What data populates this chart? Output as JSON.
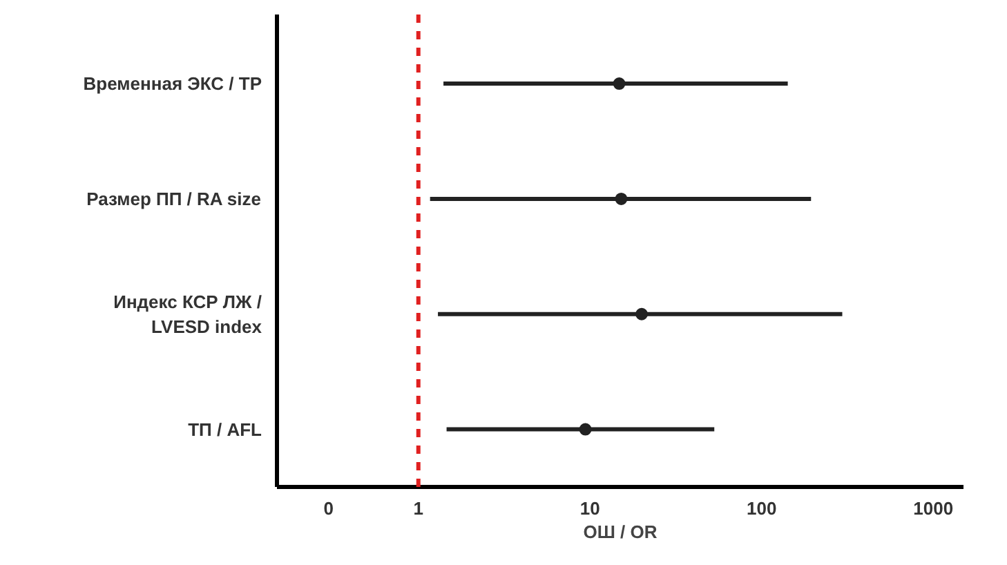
{
  "chart_data": {
    "type": "scatter",
    "orientation": "horizontal",
    "xlabel": "ОШ / OR",
    "categories": [
      "Временная ЭКС / ТР",
      "Размер ПП / RA size",
      "Индекс КСР ЛЖ /\nLVESD index",
      "ТП / AFL"
    ],
    "values": [
      14.8,
      15.2,
      20,
      9.4
    ],
    "errors": [
      [
        1.4,
        142
      ],
      [
        1.17,
        194
      ],
      [
        1.3,
        295
      ],
      [
        1.46,
        53
      ]
    ],
    "color": "#222222",
    "marker": "circle",
    "log": "x",
    "grid": false,
    "xlim": [
      0.15,
      1500
    ],
    "xticks": [
      {
        "value": 0.3,
        "label": "0"
      },
      1,
      10,
      100,
      1000
    ],
    "ref_lines": [
      {
        "axis": "x",
        "value": 1,
        "color": "#e02020",
        "line_style": "dashed"
      }
    ]
  }
}
